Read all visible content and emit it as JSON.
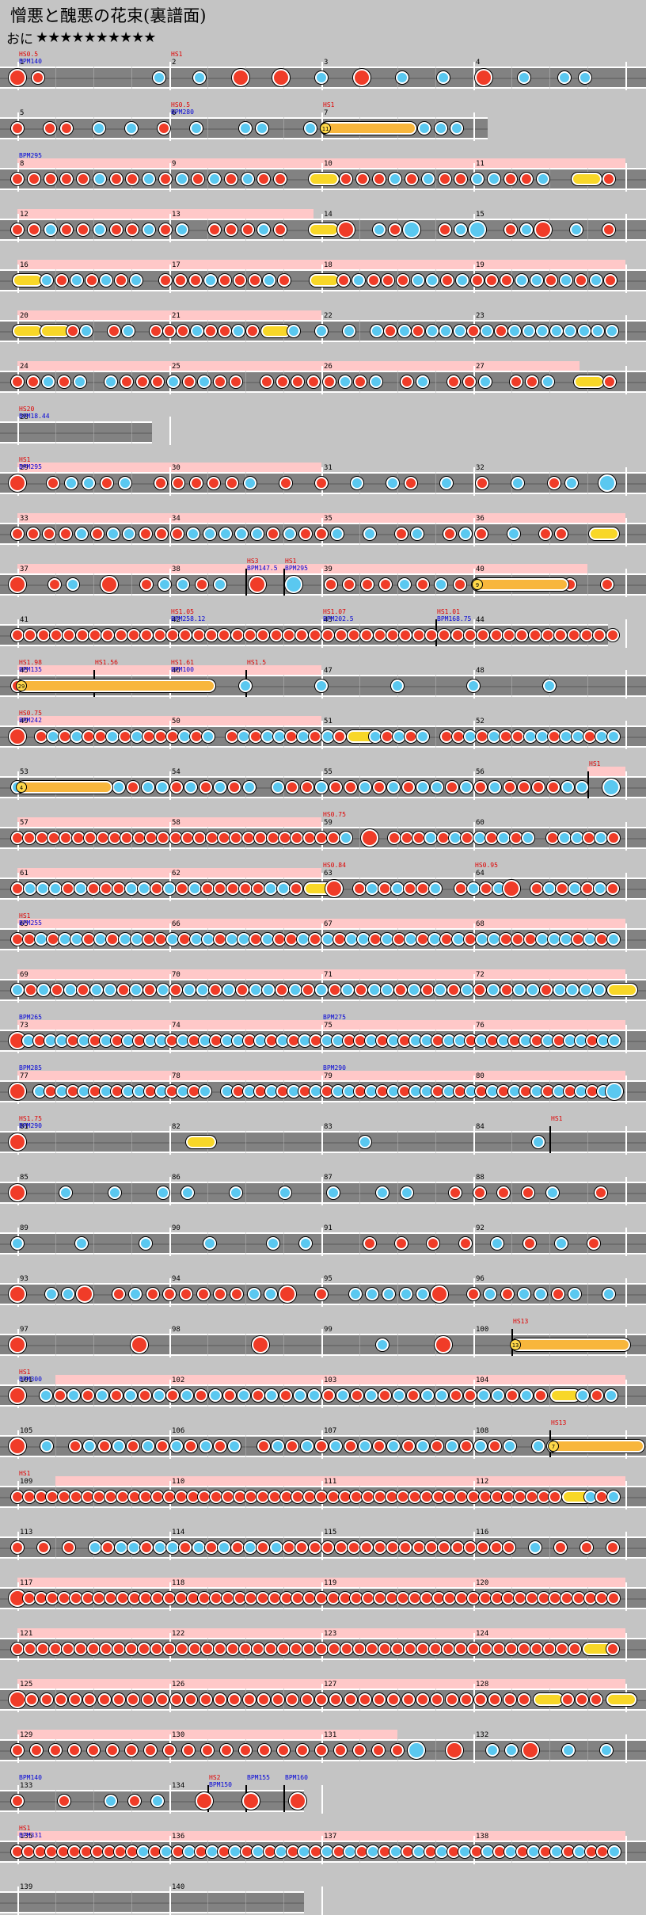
{
  "song": {
    "title": "憎悪と醜悪の花束(裏譜面)",
    "difficulty_label": "おに",
    "stars": "★★★★★★★★★★"
  },
  "colors": {
    "background": "#c4c4c4",
    "lane": "#828282",
    "gogo": "#ffc8c8",
    "don": "#f03c28",
    "ka": "#5ac8f0",
    "drumroll": "#f8d728",
    "balloon": "#f8b63c",
    "bpm_text": "#0000d8",
    "scroll_text": "#e00000"
  },
  "rows": [
    {
      "measures": [
        1,
        2,
        3,
        4
      ],
      "events": [
        {
          "text": "HS0.5",
          "color": "red",
          "m": 0
        },
        {
          "text": "BPM140",
          "color": "blue",
          "m": 0
        },
        {
          "text": "HS1",
          "color": "red",
          "m": 1
        }
      ],
      "notes": "Dd-----k-k-D-D-k-D-k-k-D-k-kk-",
      "tail": []
    },
    {
      "measures": [
        5,
        6,
        7
      ],
      "events": [
        {
          "text": "HS0.5",
          "color": "red",
          "m": 1
        },
        {
          "text": "BPM280",
          "color": "blue",
          "m": 1
        },
        {
          "text": "HS1",
          "color": "red",
          "m": 2
        }
      ],
      "notes": "d-dd-k-k-d-k--kk--kkkkkkkkkk",
      "roll": {
        "label": "11",
        "m": 2
      },
      "tail": []
    },
    {
      "measures": [
        8,
        9,
        10,
        11
      ],
      "events": [
        {
          "text": "BPM295",
          "color": "blue",
          "m": 0
        }
      ],
      "notes": "dddddkddkdkdkdkdd-y-dddkdkddkkddk-y-d",
      "gogo": [
        0,
        4
      ]
    },
    {
      "measures": [
        12,
        13,
        14,
        15
      ],
      "notes": "ddkddkddkdk-dddkd-y-D-kdK-dkK-dkD-k-d",
      "gogo": [
        0,
        1.95
      ]
    },
    {
      "measures": [
        16,
        17,
        18,
        19
      ],
      "notes": "y-kdkdkdk-dddkdddkd-y-dkdddkkdkdddkkdkdkd",
      "gogo": [
        0,
        4
      ]
    },
    {
      "measures": [
        20,
        21,
        22,
        23
      ],
      "notes": "y-y-dk-dk-dddkddkdy-k-k-k-kdkdkkkdkdkkkkkkkk",
      "gogo": [
        0,
        2
      ]
    },
    {
      "measures": [
        24,
        25,
        26,
        27
      ],
      "notes": "ddkdk-kdddkdkdd-dddddkdk-dk-ddk-ddk-y-d",
      "gogo": [
        0,
        3.7
      ]
    },
    {
      "measures": [
        28
      ],
      "events": [
        {
          "text": "HS20",
          "color": "red",
          "m": 0
        },
        {
          "text": "BPM18.44",
          "color": "blue",
          "m": 0
        }
      ],
      "notes": "",
      "short": true
    },
    {
      "measures": [
        29,
        30,
        31,
        32
      ],
      "events": [
        {
          "text": "HS1",
          "color": "red",
          "m": 0
        },
        {
          "text": "BPM295",
          "color": "blue",
          "m": 0
        }
      ],
      "notes": "D-dkkdk-dddddk-d-d-k-kd-k-d-k-dk-K",
      "gogo": [
        0,
        2
      ]
    },
    {
      "measures": [
        33,
        34,
        35,
        36
      ],
      "notes": "ddddkdkkdddkkkkkdkddk-k-dk-dkd-k-dd-y-",
      "gogo": [
        0,
        4
      ]
    },
    {
      "measures": [
        37,
        38,
        39,
        40
      ],
      "events": [
        {
          "text": "HS3",
          "color": "red",
          "m": 1.5
        },
        {
          "text": "BPM147.5",
          "color": "blue",
          "m": 1.5
        },
        {
          "text": "HS1",
          "color": "red",
          "m": 1.75
        },
        {
          "text": "BPM295",
          "color": "blue",
          "m": 1.75
        }
      ],
      "notes": "D-dk-D-dkkdk-D-K-ddddkdkddd-kdd-d",
      "roll": {
        "label": "9",
        "m": 3
      },
      "gogo": [
        0,
        3.75
      ]
    },
    {
      "measures": [
        41,
        42,
        43,
        44
      ],
      "events": [
        {
          "text": "HS1.05",
          "color": "red",
          "m": 1
        },
        {
          "text": "BPM258.12",
          "color": "blue",
          "m": 1
        },
        {
          "text": "HS1.07",
          "color": "red",
          "m": 2
        },
        {
          "text": "BPM202.5",
          "color": "blue",
          "m": 2
        },
        {
          "text": "HS1.01",
          "color": "red",
          "m": 2.75
        },
        {
          "text": "BPM168.75",
          "color": "blue",
          "m": 2.75
        }
      ],
      "notes": "ddddddddddddddddddddddddddddddddddddddddddddddd",
      "short": true
    },
    {
      "measures": [
        45,
        46,
        47,
        48
      ],
      "events": [
        {
          "text": "HS1.98",
          "color": "red",
          "m": 0
        },
        {
          "text": "BPM135",
          "color": "blue",
          "m": 0
        },
        {
          "text": "HS1.56",
          "color": "red",
          "m": 0.5
        },
        {
          "text": "HS1.61",
          "color": "red",
          "m": 1
        },
        {
          "text": "BPM100",
          "color": "blue",
          "m": 1
        },
        {
          "text": "HS1.5",
          "color": "red",
          "m": 1.5
        }
      ],
      "notes": "dddkkkkk",
      "roll": {
        "label": "29",
        "m": 0
      },
      "gogo": [
        0,
        2
      ]
    },
    {
      "measures": [
        49,
        50,
        51,
        52
      ],
      "events": [
        {
          "text": "HS0.75",
          "color": "red",
          "m": 0
        },
        {
          "text": "BPM242",
          "color": "blue",
          "m": 0
        }
      ],
      "notes": "D-dkdkddkdkdddkdk-dkdkkdkdkdy-kdkdk-ddkdkddkkdkkdkk",
      "gogo": [
        0,
        2
      ]
    },
    {
      "measures": [
        53,
        54,
        55,
        56
      ],
      "events": [
        {
          "text": "HS1",
          "color": "red",
          "m": 3.75
        }
      ],
      "notes": "kdkddkdkdkkdkdkdk-kddkddkdkdkkdkdkddddkk-K",
      "roll": {
        "label": "4",
        "m": 0
      },
      "gogo": [
        3.75,
        4
      ]
    },
    {
      "measures": [
        57,
        58,
        59,
        60
      ],
      "events": [
        {
          "text": "HS0.75",
          "color": "red",
          "m": 2
        }
      ],
      "notes": "dddddddddddddddddddddddddddk-D-dddkdkdkdkdk-dkkdkd",
      "gogo": [
        0,
        2
      ]
    },
    {
      "measures": [
        61,
        62,
        63,
        64
      ],
      "events": [
        {
          "text": "HS0.84",
          "color": "red",
          "m": 2
        },
        {
          "text": "HS0.95",
          "color": "red",
          "m": 3
        }
      ],
      "notes": "dkkkdkdddkkdkdkdddddkkdy-D-dkdkddk-dkdkD-dkdkdkd",
      "gogo": [
        0,
        2
      ]
    },
    {
      "measures": [
        65,
        66,
        67,
        68
      ],
      "events": [
        {
          "text": "HS1",
          "color": "red",
          "m": 0
        },
        {
          "text": "BPM255",
          "color": "blue",
          "m": 0
        }
      ],
      "notes": "ddkdkkdkdkkddkdkkdkkdkddkdkdkkdkdkdkdkdkkdddkkkdkdk",
      "gogo": [
        0,
        4
      ]
    },
    {
      "measures": [
        69,
        70,
        71,
        72
      ],
      "notes": "kdkdkdkkdkdkdkkdkdkkdkdkdkdkkdkdkdkdkdkkdkkkky",
      "gogo": [
        0,
        4
      ]
    },
    {
      "measures": [
        73,
        74,
        75,
        76
      ],
      "events": [
        {
          "text": "BPM265",
          "color": "blue",
          "m": 0
        },
        {
          "text": "BPM275",
          "color": "blue",
          "m": 2
        }
      ],
      "notes": "Dkdkkdkdkdkdkkdkdkdkkdkdkdkdkkddkdkdkkdkkdkdkdkdkdkkdkk",
      "gogo": [
        0,
        4
      ]
    },
    {
      "measures": [
        77,
        78,
        79,
        80
      ],
      "events": [
        {
          "text": "BPM285",
          "color": "blue",
          "m": 0
        },
        {
          "text": "BPM290",
          "color": "blue",
          "m": 2
        }
      ],
      "notes": "D-kdkdkdkdkkdkdkdk-kdkdkdkdkdkkdkdkdkkdkdkdkdkdkdkdkdkK",
      "gogo": [
        0,
        4
      ]
    },
    {
      "measures": [
        81,
        82,
        83,
        84
      ],
      "events": [
        {
          "text": "HS1.75",
          "color": "red",
          "m": 0
        },
        {
          "text": "BPM290",
          "color": "blue",
          "m": 0
        },
        {
          "text": "HS1",
          "color": "red",
          "m": 3.5
        }
      ],
      "notes": "D-y-k-k"
    },
    {
      "measures": [
        85,
        86,
        87,
        88
      ],
      "notes": "D-k-k-kk-k-k-k-kk-ddddk-d"
    },
    {
      "measures": [
        89,
        90,
        91,
        92
      ],
      "notes": "k-k-k-k-kk-ddddkdkd"
    },
    {
      "measures": [
        93,
        94,
        95,
        96
      ],
      "notes": "D-kkD-dkddddddkkD-d-kkkkkD-dkdkkdk-k"
    },
    {
      "measures": [
        97,
        98,
        99,
        100
      ],
      "events": [
        {
          "text": "HS13",
          "color": "red",
          "m": 3.25
        }
      ],
      "notes": "D-D-D-kD-k",
      "roll": {
        "label": "13",
        "m": 3.25
      }
    },
    {
      "measures": [
        101,
        102,
        103,
        104
      ],
      "events": [
        {
          "text": "HS1",
          "color": "red",
          "m": 0
        },
        {
          "text": "BPM300",
          "color": "blue",
          "m": 0
        }
      ],
      "notes": "D-kdkdkdkdkdkdkdkdkdkkdkdkdkdkkddkkdkdy-kdk",
      "gogo": [
        0.25,
        4
      ]
    },
    {
      "measures": [
        105,
        106,
        107,
        108
      ],
      "events": [
        {
          "text": "HS13",
          "color": "red",
          "m": 3.5
        }
      ],
      "notes": "D-k-dkdkdkdkdkdk-dkdkdkdkdkdkdkdkdk-kdk-kd",
      "roll": {
        "label": "7",
        "m": 3.5
      }
    },
    {
      "measures": [
        109,
        110,
        111,
        112
      ],
      "events": [
        {
          "text": "HS1",
          "color": "red",
          "m": 0
        }
      ],
      "notes": "dddddddddddddddddddddddddddddddddddddddddddddddy-kdk",
      "gogo": [
        0.25,
        4
      ]
    },
    {
      "measures": [
        113,
        114,
        115,
        116
      ],
      "notes": "d-d-d-kdkkdkkdkdkdkdkdddddddddddddddddd-k-d-d-d"
    },
    {
      "measures": [
        117,
        118,
        119,
        120
      ],
      "notes": "Dddddddddddddddddddddddddddddddddddddddddddddddddddd",
      "gogo": [
        0,
        4
      ]
    },
    {
      "measures": [
        121,
        122,
        123,
        124
      ],
      "notes": "dddddddddddddddddddddddddddddddddddddddddddddy-d",
      "gogo": [
        0,
        4
      ]
    },
    {
      "measures": [
        125,
        126,
        127,
        128
      ],
      "notes": "Ddddddddddddddddddddddddddddddddddddy-dddy",
      "gogo": [
        0,
        4
      ]
    },
    {
      "measures": [
        129,
        130,
        131,
        132
      ],
      "notes": "dddddddddddddddddddddK-D-kkD-k-k",
      "gogo": [
        0,
        2.5
      ]
    },
    {
      "measures": [
        133,
        134
      ],
      "events": [
        {
          "text": "BPM140",
          "color": "blue",
          "m": 0
        },
        {
          "text": "HS2",
          "color": "red",
          "m": 1.25
        },
        {
          "text": "BPM150",
          "color": "blue",
          "m": 1.25
        },
        {
          "text": "BPM155",
          "color": "blue",
          "m": 1.5
        },
        {
          "text": "BPM160",
          "color": "blue",
          "m": 1.75
        }
      ],
      "notes": "d-d-kdk-D-D-D",
      "short": true
    },
    {
      "measures": [
        135,
        136,
        137,
        138
      ],
      "events": [
        {
          "text": "HS1",
          "color": "red",
          "m": 0
        },
        {
          "text": "BPM331",
          "color": "blue",
          "m": 0
        }
      ],
      "notes": "dddddddddddkdkdkdkdkdkdkdkdkdkdkdkdkdkdkdkdkdkdkdkddk",
      "gogo": [
        0,
        4
      ]
    },
    {
      "measures": [
        139,
        140
      ],
      "notes": "",
      "short": true
    }
  ]
}
